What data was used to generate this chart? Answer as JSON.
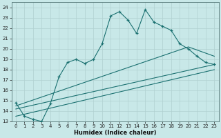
{
  "xlabel": "Humidex (Indice chaleur)",
  "bg_color": "#c8e8e8",
  "line_color": "#1a7070",
  "grid_color": "#b0d0d0",
  "xlim": [
    -0.5,
    23.5
  ],
  "ylim": [
    13,
    24.5
  ],
  "yticks": [
    13,
    14,
    15,
    16,
    17,
    18,
    19,
    20,
    21,
    22,
    23,
    24
  ],
  "xticks": [
    0,
    1,
    2,
    3,
    4,
    5,
    6,
    7,
    8,
    9,
    10,
    11,
    12,
    13,
    14,
    15,
    16,
    17,
    18,
    19,
    20,
    21,
    22,
    23
  ],
  "line1_x": [
    0,
    1,
    2,
    3,
    4,
    5,
    6,
    7,
    8,
    9,
    10,
    11,
    12,
    13,
    14,
    15,
    16,
    17,
    18,
    19,
    20,
    21,
    22,
    23
  ],
  "line1_y": [
    14.8,
    13.5,
    13.2,
    13.0,
    14.7,
    17.3,
    18.7,
    19.0,
    18.6,
    19.0,
    20.5,
    23.2,
    23.6,
    22.8,
    21.5,
    23.8,
    22.6,
    22.2,
    21.8,
    20.5,
    20.0,
    19.3,
    18.7,
    18.5
  ],
  "line2_x": [
    0,
    20,
    23
  ],
  "line2_y": [
    14.5,
    20.2,
    19.3
  ],
  "line3_x": [
    0,
    23
  ],
  "line3_y": [
    14.2,
    18.5
  ],
  "line4_x": [
    0,
    23
  ],
  "line4_y": [
    13.5,
    18.0
  ]
}
